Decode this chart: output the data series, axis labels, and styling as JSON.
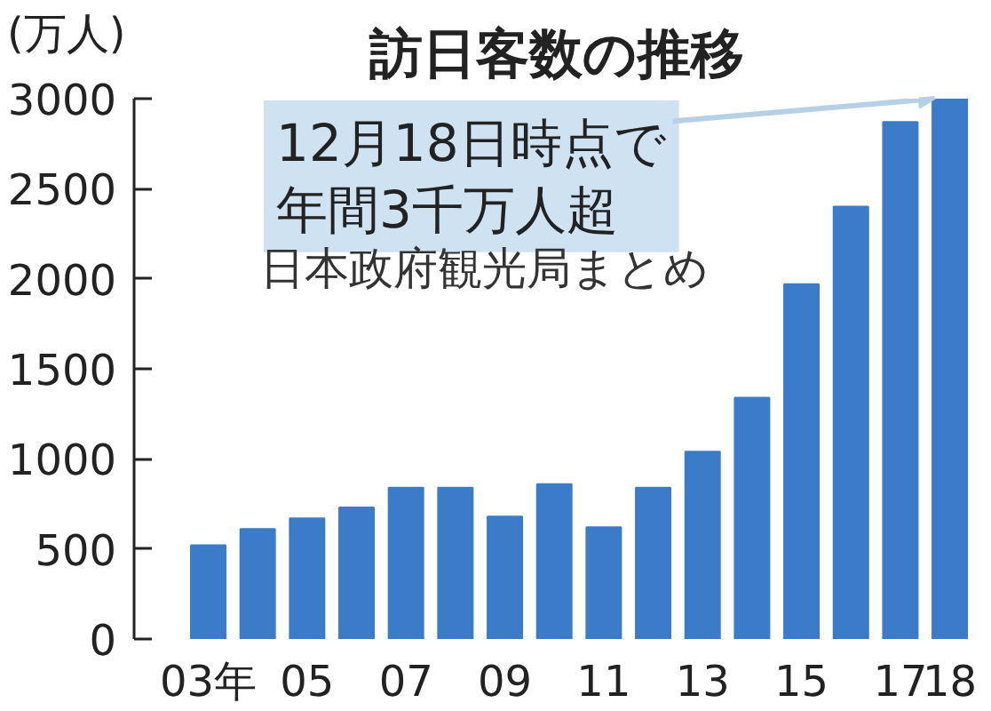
{
  "chart_data": {
    "type": "bar",
    "title": "訪日客数の推移",
    "ylabel": "(万人)",
    "categories": [
      "03年",
      null,
      "05",
      null,
      "07",
      null,
      "09",
      null,
      "11",
      null,
      "13",
      null,
      "15",
      null,
      "17",
      "18"
    ],
    "values": [
      520,
      610,
      670,
      730,
      840,
      840,
      680,
      860,
      620,
      840,
      1040,
      1340,
      1970,
      2400,
      2870,
      3000
    ],
    "color": "#3b7bc8",
    "ylim": [
      0,
      3000
    ],
    "yticks": [
      0,
      500,
      1000,
      1500,
      2000,
      2500,
      3000
    ],
    "grid": false,
    "annotations": [
      {
        "text": "12月18日時点で年間3千万人超",
        "x": "18",
        "y": 3000
      },
      "日本政府観光局まとめ"
    ]
  }
}
